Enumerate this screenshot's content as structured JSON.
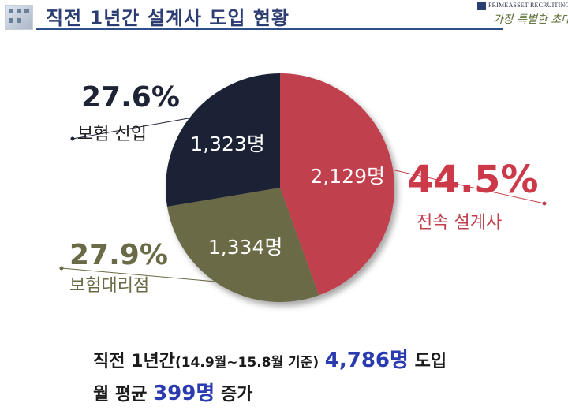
{
  "header": {
    "title": "직전 1년간 설계사 도입 현황"
  },
  "brand": {
    "name": "PRIMEASSET RECRUITING",
    "slogan": "가장 특별한 초대"
  },
  "chart_data": {
    "type": "pie",
    "labels": [
      "전속 설계사",
      "보험대리점",
      "보험 신입"
    ],
    "values": [
      2129,
      1334,
      1323
    ],
    "value_labels": [
      "2,129명",
      "1,334명",
      "1,323명"
    ],
    "percent_labels": [
      "44.5%",
      "27.9%",
      "27.6%"
    ],
    "colors": [
      "#c0404e",
      "#6b6a46",
      "#1f2336"
    ],
    "percent_colors": [
      "#cc3a4a",
      "#6b6a46",
      "#1f2336"
    ]
  },
  "footer": {
    "line1_prefix": "직전 1년간",
    "line1_period": "(14.9월~15.8월 기준)",
    "line1_total": "4,786명",
    "line1_suffix": "도입",
    "line2_prefix": "월 평균",
    "line2_avg": "399명",
    "line2_suffix": "증가"
  }
}
